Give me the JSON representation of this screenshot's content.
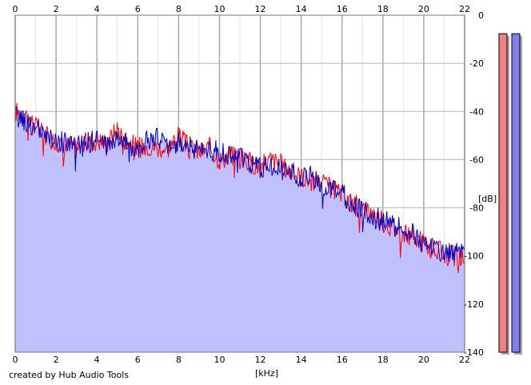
{
  "credit_text": "created by Hub Audio Tools",
  "chart_data": {
    "type": "area",
    "xlabel": "[kHz]",
    "ylabel": "[dB]",
    "xlim": [
      0,
      22
    ],
    "ylim": [
      -140,
      0
    ],
    "x_ticks": [
      "0",
      "2",
      "4",
      "6",
      "8",
      "10",
      "12",
      "14",
      "16",
      "18",
      "20",
      "22"
    ],
    "y_ticks": [
      "0",
      "-20",
      "-40",
      "-60",
      "-80",
      "-100",
      "-120",
      "-140"
    ],
    "grid": true,
    "colors": {
      "left_channel": "#ff0000",
      "right_channel": "#0000cc",
      "fill": "#c0c0ff",
      "left_meter": "#f08080",
      "right_meter": "#8080f0"
    },
    "level_meters": [
      {
        "channel": "left",
        "level_fraction": 0.98
      },
      {
        "channel": "right",
        "level_fraction": 0.98
      }
    ],
    "series": [
      {
        "channel": "left",
        "x": [
          0,
          0.5,
          1,
          1.5,
          2,
          2.5,
          3,
          3.5,
          4,
          4.5,
          5,
          5.5,
          6,
          6.5,
          7,
          7.5,
          8,
          8.5,
          9,
          9.5,
          10,
          10.5,
          11,
          11.5,
          12,
          12.5,
          13,
          13.5,
          14,
          14.5,
          15,
          15.5,
          16,
          16.5,
          17,
          17.5,
          18,
          18.5,
          19,
          19.5,
          20,
          20.5,
          21,
          21.5,
          22
        ],
        "y": [
          -40,
          -41,
          -46,
          -50,
          -53,
          -54,
          -55,
          -53,
          -52,
          -53,
          -47,
          -52,
          -55,
          -54,
          -55,
          -55,
          -50,
          -55,
          -57,
          -55,
          -60,
          -58,
          -59,
          -61,
          -63,
          -60,
          -62,
          -65,
          -67,
          -69,
          -70,
          -72,
          -75,
          -78,
          -80,
          -82,
          -86,
          -88,
          -91,
          -92,
          -95,
          -97,
          -99,
          -100,
          -101
        ]
      },
      {
        "channel": "right",
        "x": [
          0,
          0.5,
          1,
          1.5,
          2,
          2.5,
          3,
          3.5,
          4,
          4.5,
          5,
          5.5,
          6,
          6.5,
          7,
          7.5,
          8,
          8.5,
          9,
          9.5,
          10,
          10.5,
          11,
          11.5,
          12,
          12.5,
          13,
          13.5,
          14,
          14.5,
          15,
          15.5,
          16,
          16.5,
          17,
          17.5,
          18,
          18.5,
          19,
          19.5,
          20,
          20.5,
          21,
          21.5,
          22
        ],
        "y": [
          -42,
          -44,
          -47,
          -51,
          -52,
          -53,
          -54,
          -53,
          -52,
          -54,
          -51,
          -54,
          -55,
          -52,
          -51,
          -54,
          -53,
          -54,
          -56,
          -55,
          -57,
          -58,
          -59,
          -62,
          -63,
          -62,
          -64,
          -66,
          -68,
          -67,
          -71,
          -73,
          -74,
          -79,
          -81,
          -83,
          -85,
          -87,
          -89,
          -91,
          -95,
          -96,
          -99,
          -98,
          -100
        ]
      }
    ]
  }
}
